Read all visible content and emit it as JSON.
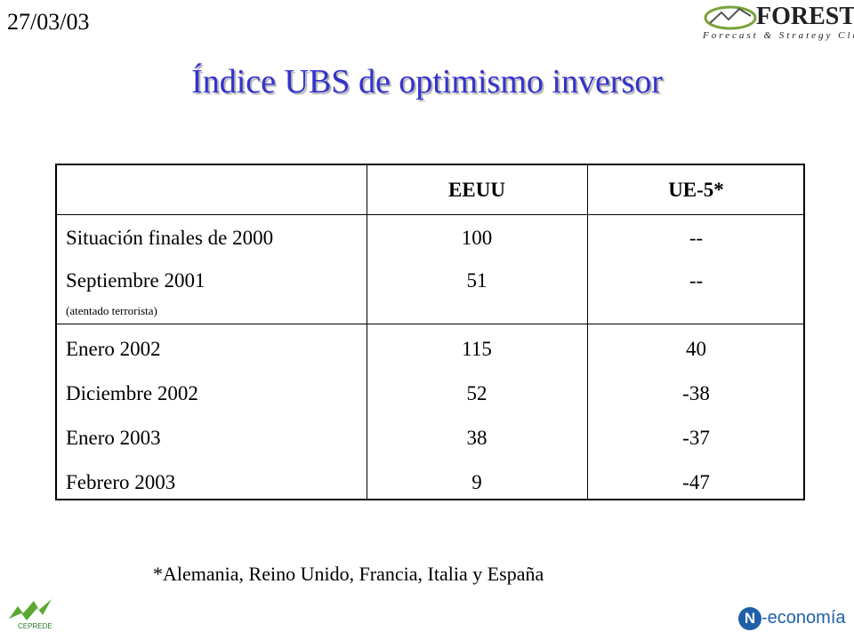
{
  "date": "27/03/03",
  "title": "Índice UBS de optimismo inversor",
  "logos": {
    "forest": "FOREST",
    "forest_tagline": "Forecast & Strategy Club",
    "ceprede": "CEPREDE",
    "neconomia_mark": "N",
    "neconomia": "-economía"
  },
  "table": {
    "header": [
      "EEUU",
      "UE-5*"
    ],
    "rows": [
      [
        "Situación finales de 2000",
        100,
        "--"
      ],
      [
        "Septiembre 2001",
        51,
        "--"
      ],
      [
        "Enero 2002",
        115,
        40
      ],
      [
        "Diciembre 2002",
        52,
        -38
      ],
      [
        "Enero 2003",
        38,
        -37
      ],
      [
        "Febrero 2003",
        9,
        -47
      ]
    ],
    "note": "(atentado terrorista)"
  },
  "footnote": "*Alemania, Reino Unido, Francia, Italia y España"
}
